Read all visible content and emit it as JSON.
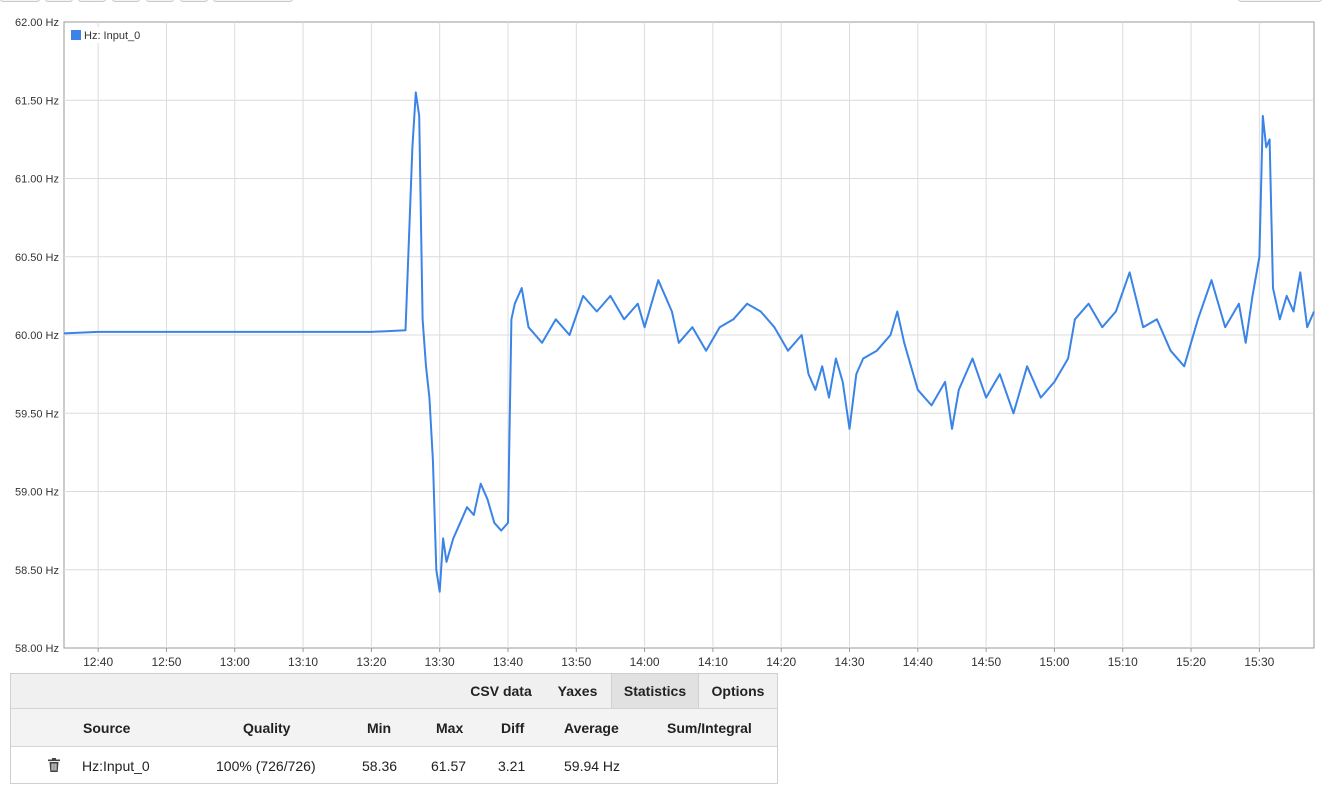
{
  "chart_data": {
    "type": "line",
    "title": "",
    "xlabel": "",
    "ylabel": "",
    "legend": {
      "label": "Hz: Input_0",
      "color": "#3a84e8",
      "placement": "top-left"
    },
    "grid": true,
    "ylim": [
      58.0,
      62.0
    ],
    "yticks": [
      "62.00 Hz",
      "61.50 Hz",
      "61.00 Hz",
      "60.50 Hz",
      "60.00 Hz",
      "59.50 Hz",
      "59.00 Hz",
      "58.50 Hz",
      "58.00 Hz"
    ],
    "yvalues": [
      62.0,
      61.5,
      61.0,
      60.5,
      60.0,
      59.5,
      59.0,
      58.5,
      58.0
    ],
    "xlim": [
      "12:35",
      "15:38"
    ],
    "xticks": [
      "12:40",
      "12:50",
      "13:00",
      "13:10",
      "13:20",
      "13:30",
      "13:40",
      "13:50",
      "14:00",
      "14:10",
      "14:20",
      "14:30",
      "14:40",
      "14:50",
      "15:00",
      "15:10",
      "15:20",
      "15:30"
    ],
    "series": [
      {
        "name": "Hz: Input_0",
        "color": "#3a84e8",
        "points": [
          [
            "12:35",
            60.01
          ],
          [
            "12:40",
            60.02
          ],
          [
            "12:50",
            60.02
          ],
          [
            "13:00",
            60.02
          ],
          [
            "13:10",
            60.02
          ],
          [
            "13:20",
            60.02
          ],
          [
            "13:25",
            60.03
          ],
          [
            "13:26",
            61.2
          ],
          [
            "13:26.5",
            61.55
          ],
          [
            "13:27",
            61.4
          ],
          [
            "13:27.5",
            60.1
          ],
          [
            "13:28",
            59.8
          ],
          [
            "13:28.5",
            59.6
          ],
          [
            "13:29",
            59.2
          ],
          [
            "13:29.5",
            58.5
          ],
          [
            "13:30",
            58.36
          ],
          [
            "13:30.5",
            58.7
          ],
          [
            "13:31",
            58.55
          ],
          [
            "13:32",
            58.7
          ],
          [
            "13:33",
            58.8
          ],
          [
            "13:34",
            58.9
          ],
          [
            "13:35",
            58.85
          ],
          [
            "13:36",
            59.05
          ],
          [
            "13:37",
            58.95
          ],
          [
            "13:38",
            58.8
          ],
          [
            "13:39",
            58.75
          ],
          [
            "13:40",
            58.8
          ],
          [
            "13:40.5",
            60.1
          ],
          [
            "13:41",
            60.2
          ],
          [
            "13:42",
            60.3
          ],
          [
            "13:43",
            60.05
          ],
          [
            "13:44",
            60.0
          ],
          [
            "13:45",
            59.95
          ],
          [
            "13:47",
            60.1
          ],
          [
            "13:49",
            60.0
          ],
          [
            "13:51",
            60.25
          ],
          [
            "13:53",
            60.15
          ],
          [
            "13:55",
            60.25
          ],
          [
            "13:57",
            60.1
          ],
          [
            "13:59",
            60.2
          ],
          [
            "14:00",
            60.05
          ],
          [
            "14:02",
            60.35
          ],
          [
            "14:04",
            60.15
          ],
          [
            "14:05",
            59.95
          ],
          [
            "14:07",
            60.05
          ],
          [
            "14:09",
            59.9
          ],
          [
            "14:11",
            60.05
          ],
          [
            "14:13",
            60.1
          ],
          [
            "14:15",
            60.2
          ],
          [
            "14:17",
            60.15
          ],
          [
            "14:19",
            60.05
          ],
          [
            "14:21",
            59.9
          ],
          [
            "14:23",
            60.0
          ],
          [
            "14:24",
            59.75
          ],
          [
            "14:25",
            59.65
          ],
          [
            "14:26",
            59.8
          ],
          [
            "14:27",
            59.6
          ],
          [
            "14:28",
            59.85
          ],
          [
            "14:29",
            59.7
          ],
          [
            "14:30",
            59.4
          ],
          [
            "14:31",
            59.75
          ],
          [
            "14:32",
            59.85
          ],
          [
            "14:34",
            59.9
          ],
          [
            "14:36",
            60.0
          ],
          [
            "14:37",
            60.15
          ],
          [
            "14:38",
            59.95
          ],
          [
            "14:39",
            59.8
          ],
          [
            "14:40",
            59.65
          ],
          [
            "14:42",
            59.55
          ],
          [
            "14:44",
            59.7
          ],
          [
            "14:45",
            59.4
          ],
          [
            "14:46",
            59.65
          ],
          [
            "14:48",
            59.85
          ],
          [
            "14:50",
            59.6
          ],
          [
            "14:52",
            59.75
          ],
          [
            "14:54",
            59.5
          ],
          [
            "14:56",
            59.8
          ],
          [
            "14:58",
            59.6
          ],
          [
            "15:00",
            59.7
          ],
          [
            "15:02",
            59.85
          ],
          [
            "15:03",
            60.1
          ],
          [
            "15:05",
            60.2
          ],
          [
            "15:07",
            60.05
          ],
          [
            "15:09",
            60.15
          ],
          [
            "15:11",
            60.4
          ],
          [
            "15:13",
            60.05
          ],
          [
            "15:15",
            60.1
          ],
          [
            "15:17",
            59.9
          ],
          [
            "15:19",
            59.8
          ],
          [
            "15:21",
            60.1
          ],
          [
            "15:23",
            60.35
          ],
          [
            "15:25",
            60.05
          ],
          [
            "15:27",
            60.2
          ],
          [
            "15:28",
            59.95
          ],
          [
            "15:29",
            60.25
          ],
          [
            "15:30",
            60.5
          ],
          [
            "15:30.5",
            61.4
          ],
          [
            "15:31",
            61.2
          ],
          [
            "15:31.5",
            61.25
          ],
          [
            "15:32",
            60.3
          ],
          [
            "15:33",
            60.1
          ],
          [
            "15:34",
            60.25
          ],
          [
            "15:35",
            60.15
          ],
          [
            "15:36",
            60.4
          ],
          [
            "15:37",
            60.05
          ],
          [
            "15:38",
            60.15
          ]
        ]
      }
    ]
  },
  "tabs": [
    {
      "label": "CSV data",
      "active": false
    },
    {
      "label": "Yaxes",
      "active": false
    },
    {
      "label": "Statistics",
      "active": true
    },
    {
      "label": "Options",
      "active": false
    }
  ],
  "stats": {
    "headers": {
      "source": "Source",
      "quality": "Quality",
      "min": "Min",
      "max": "Max",
      "diff": "Diff",
      "average": "Average",
      "sum": "Sum/Integral"
    },
    "row": {
      "icon": "trash-icon",
      "source": "Hz:Input_0",
      "quality": "100% (726/726)",
      "min": "58.36",
      "max": "61.57",
      "diff": "3.21",
      "average": "59.94 Hz",
      "sum": ""
    }
  }
}
